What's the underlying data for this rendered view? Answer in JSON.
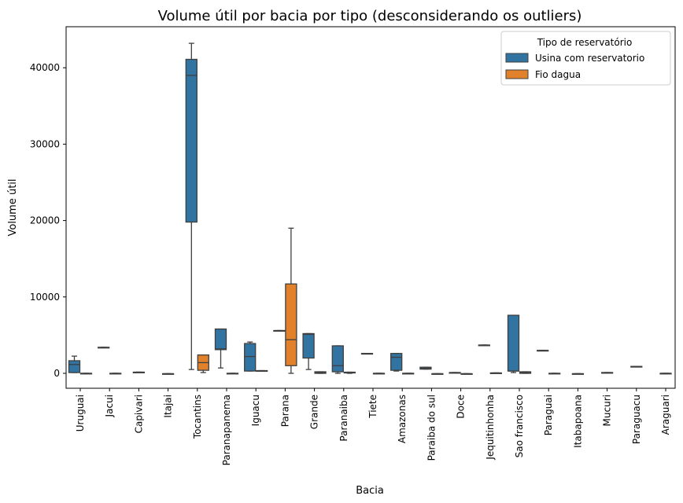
{
  "chart_data": {
    "type": "box",
    "title": "Volume útil por bacia por tipo (desconsiderando os outliers)",
    "xlabel": "Bacia",
    "ylabel": "Volume útil",
    "ylim": [
      -2000,
      45500
    ],
    "yticks": [
      0,
      10000,
      20000,
      30000,
      40000
    ],
    "grid": false,
    "legend": {
      "title": "Tipo de reservatório",
      "placement": "top-right",
      "entries": [
        {
          "name": "Usina com reservatorio",
          "color": "#3274a1"
        },
        {
          "name": "Fio dagua",
          "color": "#e1812c"
        }
      ]
    },
    "categories": [
      "Uruguai",
      "Jacui",
      "Capivari",
      "Itajai",
      "Tocantins",
      "Paranapanema",
      "Iguacu",
      "Parana",
      "Grande",
      "Paranaiba",
      "Tiete",
      "Amazonas",
      "Paraiba do sul",
      "Doce",
      "Jequitinhonha",
      "Sao francisco",
      "Paraguai",
      "Itabapoana",
      "Mucuri",
      "Paraguacu",
      "Araguari"
    ],
    "series": [
      {
        "name": "Usina com reservatorio",
        "boxes": [
          [
            100,
            100,
            1150,
            1650,
            2250
          ],
          [
            3400,
            3400,
            3400,
            3400,
            3400
          ],
          [
            150,
            150,
            150,
            150,
            150
          ],
          null,
          [
            500,
            19800,
            39000,
            41100,
            43200
          ],
          [
            700,
            3100,
            3200,
            5800,
            5800
          ],
          [
            300,
            300,
            2200,
            3900,
            4100
          ],
          [
            5600,
            5600,
            5600,
            5600,
            5600
          ],
          [
            500,
            2000,
            5100,
            5200,
            5200
          ],
          [
            0,
            200,
            1000,
            3600,
            3600
          ],
          [
            2600,
            2600,
            2600,
            2600,
            2600
          ],
          [
            300,
            400,
            2100,
            2600,
            2600
          ],
          [
            550,
            550,
            650,
            800,
            800
          ],
          [
            100,
            100,
            100,
            100,
            100
          ],
          [
            3700,
            3700,
            3700,
            3700,
            3700
          ],
          [
            100,
            300,
            300,
            7600,
            7600
          ],
          [
            3000,
            3000,
            3000,
            3000,
            3000
          ],
          null,
          [
            100,
            100,
            100,
            100,
            100
          ],
          [
            900,
            900,
            900,
            900,
            900
          ],
          null
        ]
      },
      {
        "name": "Fio dagua",
        "boxes": [
          [
            0,
            0,
            0,
            0,
            0
          ],
          [
            0,
            0,
            0,
            0,
            0
          ],
          null,
          [
            -50,
            -50,
            -50,
            -50,
            -50
          ],
          [
            100,
            400,
            1400,
            2400,
            2400
          ],
          [
            0,
            0,
            0,
            0,
            0
          ],
          [
            350,
            350,
            350,
            350,
            350
          ],
          [
            0,
            1000,
            4400,
            11700,
            19000
          ],
          [
            0,
            0,
            100,
            200,
            200
          ],
          [
            0,
            50,
            100,
            150,
            150
          ],
          [
            0,
            0,
            0,
            0,
            0
          ],
          [
            0,
            0,
            0,
            0,
            0
          ],
          [
            -50,
            -50,
            -50,
            -50,
            -50
          ],
          [
            -50,
            -50,
            -50,
            -50,
            -50
          ],
          [
            50,
            50,
            50,
            50,
            50
          ],
          [
            0,
            0,
            100,
            200,
            200
          ],
          [
            0,
            0,
            0,
            0,
            0
          ],
          [
            -50,
            -50,
            -50,
            -50,
            -50
          ],
          null,
          null,
          [
            0,
            0,
            0,
            0,
            0
          ]
        ]
      }
    ]
  }
}
